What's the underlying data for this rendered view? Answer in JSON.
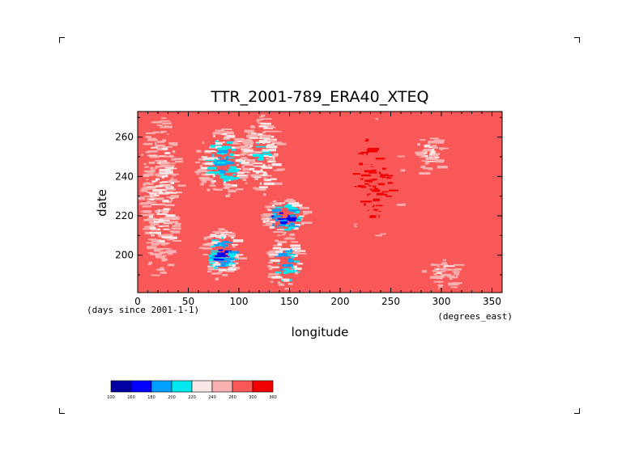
{
  "chart_data": {
    "type": "heatmap",
    "title": "TTR_2001-789_ERA40_XTEQ",
    "xlabel": "longitude",
    "xunits": "(degrees_east)",
    "ylabel": "date",
    "yunits": "(days since 2001-1-1)",
    "xlim": [
      0,
      360
    ],
    "ylim": [
      181,
      273
    ],
    "x_ticks": [
      0,
      50,
      100,
      150,
      200,
      250,
      300,
      350
    ],
    "y_ticks": [
      200,
      220,
      240,
      260
    ],
    "colorbar": {
      "levels": [
        100,
        160,
        180,
        200,
        220,
        240,
        260,
        300,
        360
      ],
      "colors": [
        "#0000a0",
        "#0000ff",
        "#00a0ff",
        "#00e8f0",
        "#f8e8e8",
        "#f8b0b0",
        "#f85858",
        "#f00000"
      ]
    },
    "background_value": 270,
    "features": [
      {
        "lon": [
          60,
          100
        ],
        "day": [
          188,
          215
        ],
        "value": 175
      },
      {
        "lon": [
          120,
          165
        ],
        "day": [
          210,
          230
        ],
        "value": 160
      },
      {
        "lon": [
          125,
          160
        ],
        "day": [
          183,
          210
        ],
        "value": 185
      },
      {
        "lon": [
          55,
          110
        ],
        "day": [
          230,
          265
        ],
        "value": 190
      },
      {
        "lon": [
          0,
          40
        ],
        "day": [
          185,
          272
        ],
        "value": 230
      },
      {
        "lon": [
          100,
          140
        ],
        "day": [
          230,
          272
        ],
        "value": 215
      },
      {
        "lon": [
          200,
          260
        ],
        "day": [
          210,
          270
        ],
        "value": 305
      },
      {
        "lon": [
          270,
          300
        ],
        "day": [
          240,
          265
        ],
        "value": 235
      },
      {
        "lon": [
          280,
          320
        ],
        "day": [
          183,
          200
        ],
        "value": 240
      }
    ]
  }
}
